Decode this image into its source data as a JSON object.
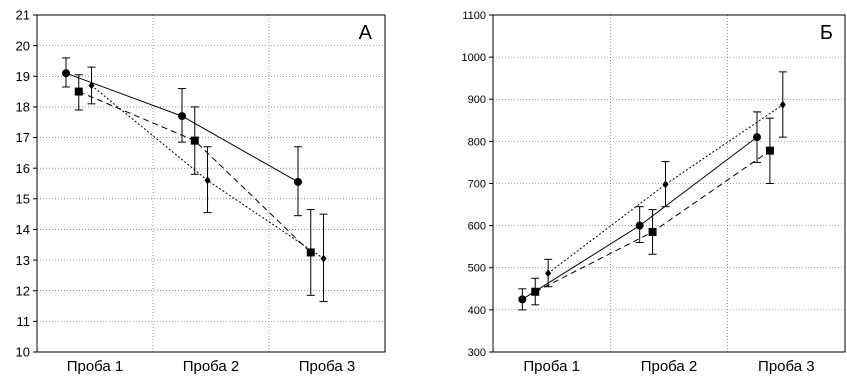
{
  "chart_data": [
    {
      "type": "line",
      "panel_label": "А",
      "categories": [
        "Проба 1",
        "Проба 2",
        "Проба 3"
      ],
      "ylim": [
        10,
        21
      ],
      "yticks": [
        10,
        11,
        12,
        13,
        14,
        15,
        16,
        17,
        18,
        19,
        20,
        21
      ],
      "grid": true,
      "series": [
        {
          "marker": "circle",
          "line": "solid",
          "values": [
            19.1,
            17.7,
            15.55
          ],
          "err_low": [
            18.65,
            16.85,
            14.45
          ],
          "err_high": [
            19.6,
            18.6,
            16.7
          ]
        },
        {
          "marker": "square",
          "line": "dashed",
          "values": [
            18.5,
            16.9,
            13.25
          ],
          "err_low": [
            17.9,
            15.8,
            11.85
          ],
          "err_high": [
            19.05,
            18.0,
            14.65
          ]
        },
        {
          "marker": "diamond",
          "line": "dotted",
          "values": [
            18.7,
            15.6,
            13.05
          ],
          "err_low": [
            18.1,
            14.55,
            11.65
          ],
          "err_high": [
            19.3,
            16.7,
            14.5
          ]
        }
      ]
    },
    {
      "type": "line",
      "panel_label": "Б",
      "categories": [
        "Проба 1",
        "Проба 2",
        "Проба 3"
      ],
      "ylim": [
        300,
        1100
      ],
      "yticks": [
        300,
        400,
        500,
        600,
        700,
        800,
        900,
        1000,
        1100
      ],
      "grid": true,
      "series": [
        {
          "marker": "circle",
          "line": "solid",
          "values": [
            425,
            600,
            810
          ],
          "err_low": [
            400,
            560,
            750
          ],
          "err_high": [
            450,
            645,
            870
          ]
        },
        {
          "marker": "square",
          "line": "dashed",
          "values": [
            443,
            585,
            778
          ],
          "err_low": [
            412,
            532,
            700
          ],
          "err_high": [
            475,
            638,
            855
          ]
        },
        {
          "marker": "diamond",
          "line": "dotted",
          "values": [
            487,
            698,
            887
          ],
          "err_low": [
            455,
            645,
            810
          ],
          "err_high": [
            520,
            752,
            965
          ]
        }
      ]
    }
  ]
}
